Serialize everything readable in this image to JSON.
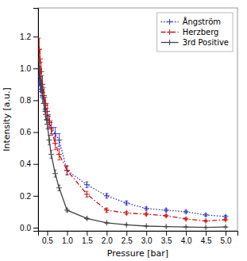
{
  "chart_data": {
    "type": "line",
    "xlabel": "Pressure [bar]",
    "ylabel": "Intensity [a.u.]",
    "x": [
      0.3,
      0.32,
      0.35,
      0.38,
      0.42,
      0.46,
      0.5,
      0.55,
      0.6,
      0.7,
      0.8,
      1.0,
      1.5,
      2.0,
      2.5,
      3.0,
      3.5,
      4.0,
      4.5,
      5.0
    ],
    "xlim": [
      0.27,
      5.3
    ],
    "ylim": [
      -0.02,
      1.38
    ],
    "xticks": [
      0.5,
      {
        "value": 1.0,
        "label": "1.0"
      },
      1.5,
      {
        "value": 2.0,
        "label": "2.0"
      },
      2.5,
      {
        "value": 3.0,
        "label": "3.0"
      },
      3.5,
      {
        "value": 4.0,
        "label": "4.0"
      },
      4.5,
      {
        "value": 5.0,
        "label": "5.0"
      }
    ],
    "yticks": [
      {
        "value": 0,
        "label": "0.0"
      },
      0.2,
      0.4,
      0.6,
      0.8,
      {
        "value": 1.0,
        "label": "1.0"
      },
      1.2
    ],
    "grid": false,
    "legend": "upper right",
    "series": [
      {
        "name": "Ångström",
        "color": "#3333bb",
        "line_style": "dotted",
        "marker": "+",
        "values": [
          0.95,
          0.91,
          0.87,
          0.83,
          0.78,
          0.73,
          0.7,
          0.66,
          0.63,
          0.59,
          0.55,
          0.36,
          0.27,
          0.2,
          0.155,
          0.12,
          0.11,
          0.1,
          0.08,
          0.07
        ],
        "yerr": [
          0.06,
          0.055,
          0.05,
          0.05,
          0.05,
          0.05,
          0.05,
          0.04,
          0.04,
          0.04,
          0.04,
          0.025,
          0.018,
          0.015,
          0.012,
          0.01,
          0.01,
          0.009,
          0.008,
          0.007
        ]
      },
      {
        "name": "Herzberg",
        "color": "#cc1111",
        "line_style": "dashdot",
        "marker": "+",
        "values": [
          1.12,
          1.06,
          0.98,
          0.9,
          0.83,
          0.77,
          0.73,
          0.67,
          0.62,
          0.53,
          0.46,
          0.36,
          0.21,
          0.11,
          0.092,
          0.085,
          0.075,
          0.055,
          0.042,
          0.05
        ],
        "yerr": [
          0.07,
          0.06,
          0.06,
          0.055,
          0.05,
          0.05,
          0.05,
          0.04,
          0.04,
          0.04,
          0.035,
          0.03,
          0.018,
          0.013,
          0.01,
          0.009,
          0.008,
          0.007,
          0.006,
          0.006
        ]
      },
      {
        "name": "3rd Positive",
        "color": "#444444",
        "line_style": "solid",
        "marker": "+",
        "values": [
          1.0,
          0.95,
          0.9,
          0.85,
          0.78,
          0.71,
          0.65,
          0.55,
          0.46,
          0.34,
          0.25,
          0.11,
          0.058,
          0.03,
          0.018,
          0.01,
          0.007,
          0.004,
          0.002,
          0.004
        ],
        "yerr": [
          0.05,
          0.045,
          0.04,
          0.04,
          0.035,
          0.035,
          0.03,
          0.03,
          0.025,
          0.022,
          0.018,
          0.01,
          0.006,
          0.004,
          0.003,
          0.003,
          0.002,
          0.002,
          0.002,
          0.002
        ]
      }
    ]
  }
}
